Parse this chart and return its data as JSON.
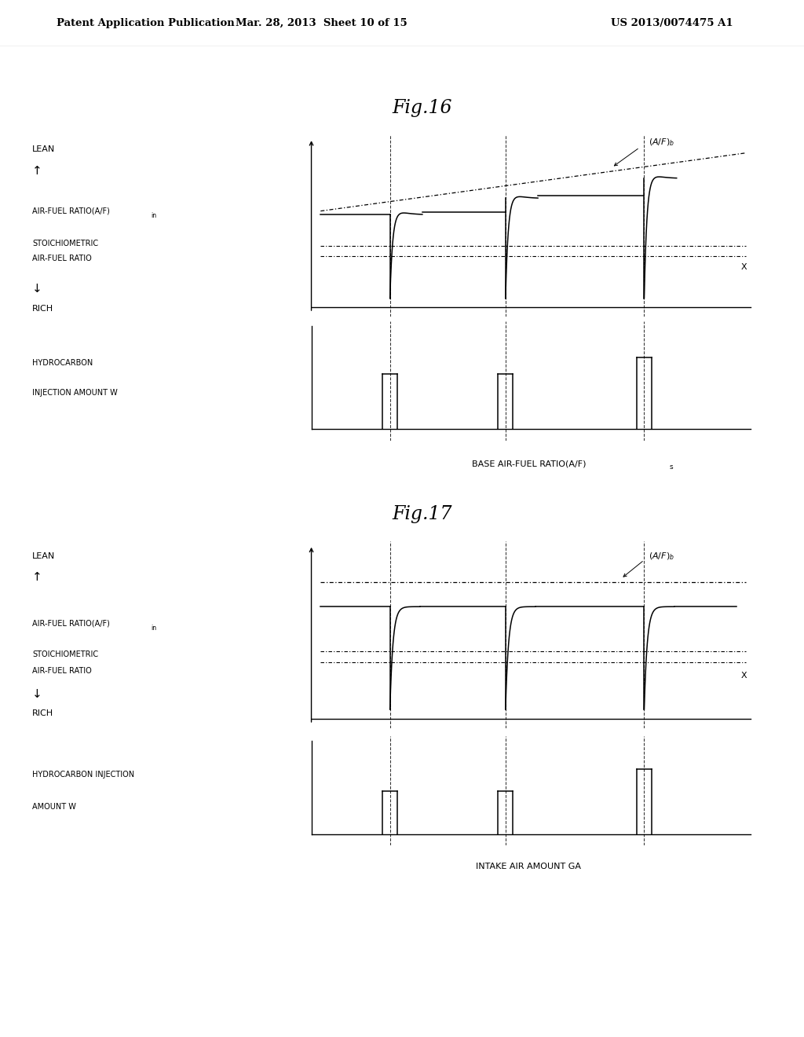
{
  "fig16_title": "Fig.16",
  "fig17_title": "Fig.17",
  "header_left": "Patent Application Publication",
  "header_mid": "Mar. 28, 2013  Sheet 10 of 15",
  "header_right": "US 2013/0074475 A1",
  "background_color": "#ffffff",
  "fig16_left_labels": {
    "lean": "LEAN",
    "afr": "AIR-FUEL RATIO(A/F)",
    "afr_sub": "in",
    "stoich1": "STOICHIOMETRIC",
    "stoich2": "AIR-FUEL RATIO",
    "rich": "RICH",
    "hc1": "HYDROCARBON",
    "hc2": "INJECTION AMOUNT W"
  },
  "fig17_left_labels": {
    "lean": "LEAN",
    "afr": "AIR-FUEL RATIO(A/F)",
    "afr_sub": "in",
    "stoich1": "STOICHIOMETRIC",
    "stoich2": "AIR-FUEL RATIO",
    "rich": "RICH",
    "hc1": "HYDROCARBON INJECTION",
    "hc2": "AMOUNT W"
  },
  "fig16_xlabel": "BASE AIR-FUEL RATIO(A/F)",
  "fig16_xlabel_sub": "s",
  "fig17_xlabel": "INTAKE AIR AMOUNT GA",
  "afb_label": "(A/F)",
  "afb_sub": "b",
  "x_label": "X"
}
